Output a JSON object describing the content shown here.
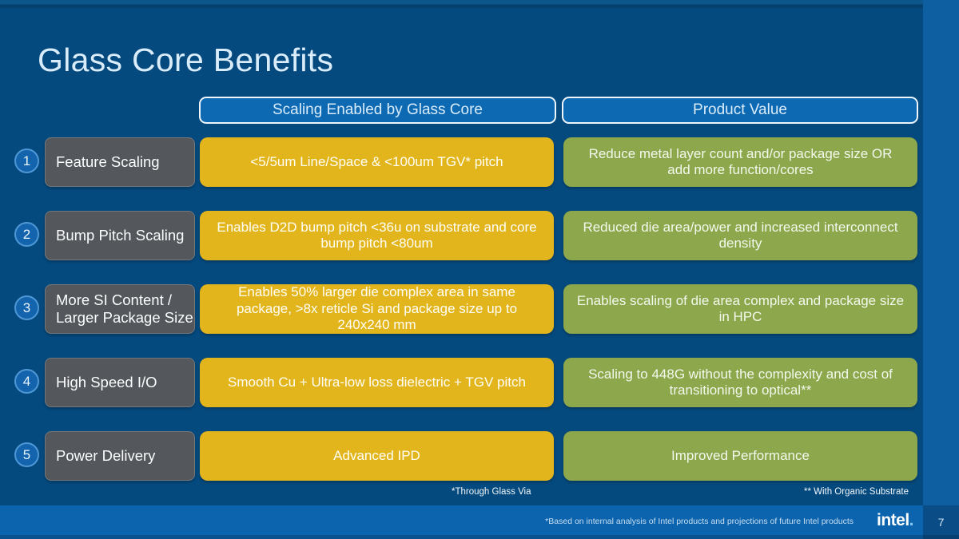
{
  "slide": {
    "title": "Glass Core Benefits",
    "columns": {
      "scaling_header": "Scaling Enabled by Glass Core",
      "value_header": "Product Value"
    },
    "rows": [
      {
        "num": "1",
        "label": "Feature Scaling",
        "scaling": "<5/5um Line/Space & <100um TGV* pitch",
        "value": "Reduce metal layer count and/or package size OR\nadd more function/cores"
      },
      {
        "num": "2",
        "label": "Bump Pitch Scaling",
        "scaling": "Enables D2D bump pitch <36u on substrate and core\nbump pitch <80um",
        "value": "Reduced die area/power and increased interconnect\ndensity"
      },
      {
        "num": "3",
        "label": "More SI Content /\nLarger Package Size",
        "scaling": "Enables 50% larger die complex area in same\npackage, >8x reticle Si and package size up to\n240x240 mm",
        "value": "Enables scaling of die area complex and package size\nin HPC"
      },
      {
        "num": "4",
        "label": "High Speed I/O",
        "scaling": "Smooth Cu + Ultra-low loss dielectric + TGV pitch",
        "value": "Scaling to 448G without the complexity and cost of\ntransitioning to optical**"
      },
      {
        "num": "5",
        "label": "Power Delivery",
        "scaling": "Advanced IPD",
        "value": "Improved Performance"
      }
    ],
    "footnotes": {
      "tgv": "*Through Glass Via",
      "organic": "** With Organic Substrate"
    },
    "footer": {
      "disclaimer": "*Based on internal analysis of Intel products and projections of future Intel products",
      "logo": "intel",
      "logo_dot": ".",
      "page": "7"
    },
    "colors": {
      "background": "#054a7e",
      "accent_blue": "#0e69b3",
      "yellow": "#e3b51d",
      "green": "#8da74c",
      "gray": "#54575b",
      "footer_bar": "#0c64ae"
    }
  }
}
